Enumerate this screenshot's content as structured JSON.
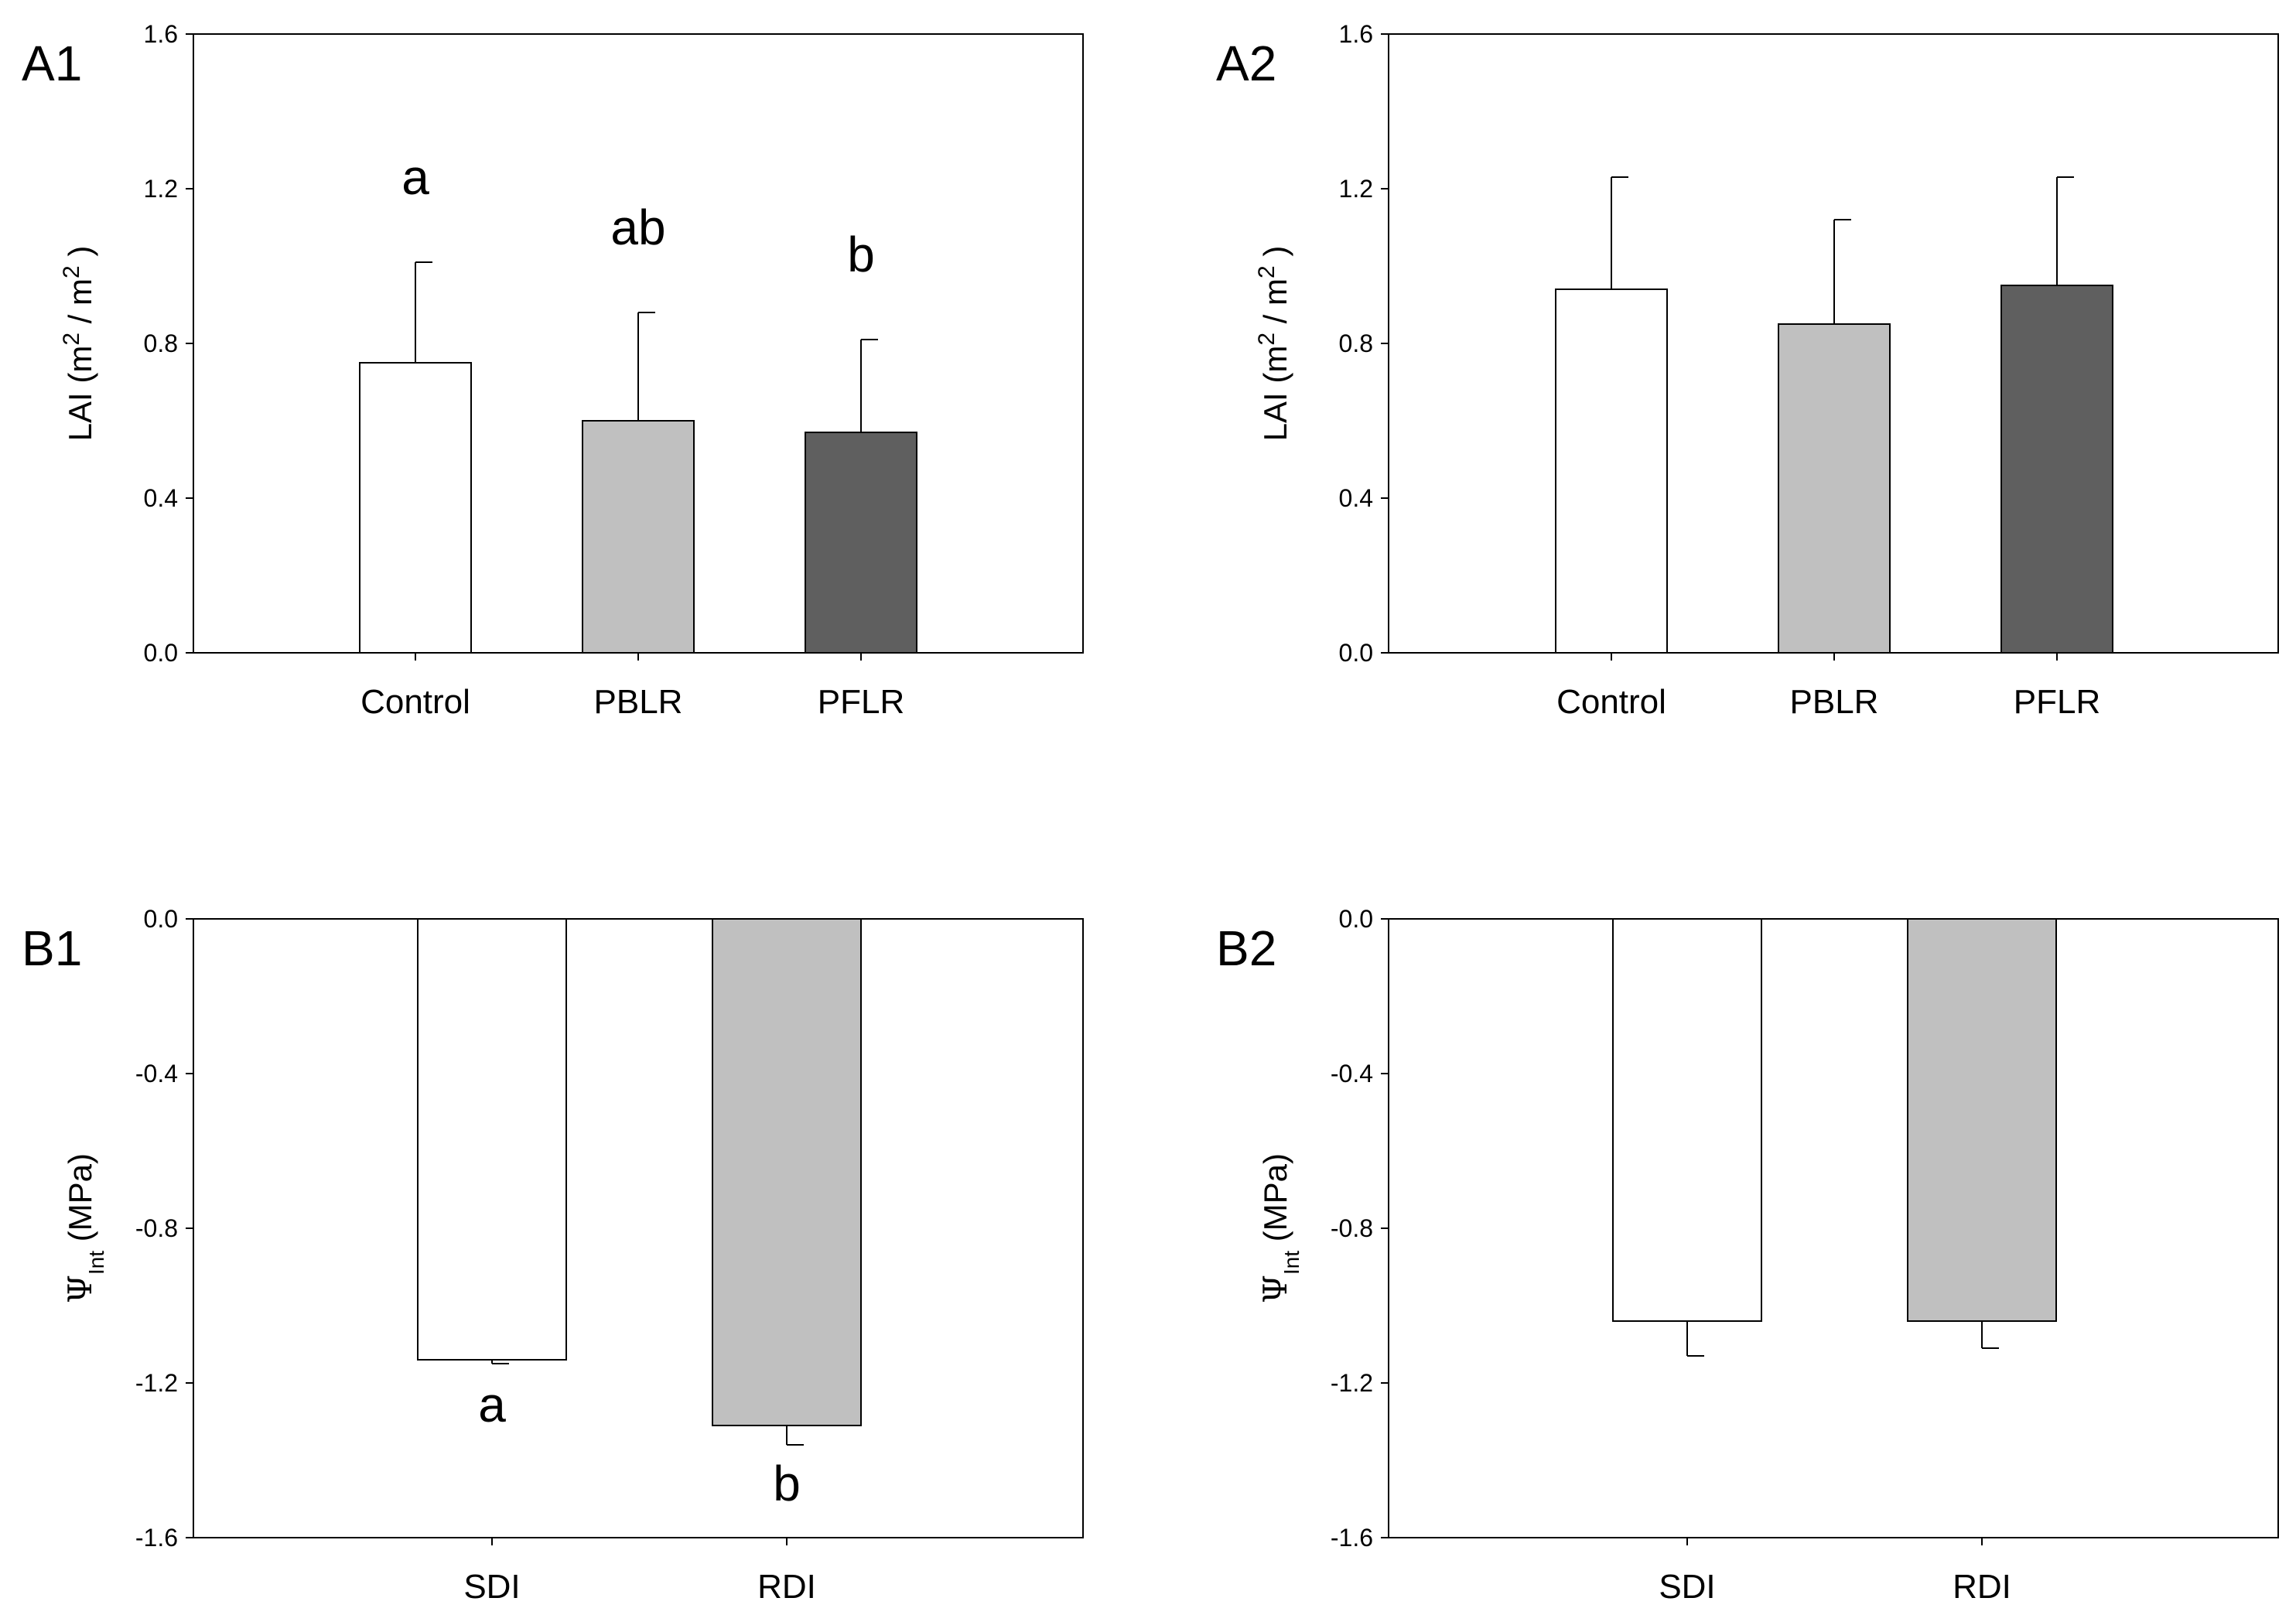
{
  "figure": {
    "colors": {
      "frame": "#000000",
      "bar_outline": "#000000",
      "white_bar": "#ffffff",
      "light_gray_bar": "#c0c0c0",
      "dark_gray_bar": "#5f5f5f"
    }
  },
  "chart_data": [
    {
      "id": "A1",
      "panel_label": "A1",
      "type": "bar",
      "ylabel": "LAI (m2 / m2 )",
      "ylabel_parts": {
        "prefix": "LAI (m",
        "sup1": "2",
        "middle": " / m",
        "sup2": "2",
        "suffix": " )"
      },
      "ylim": [
        0.0,
        1.6
      ],
      "yticks": [
        0.0,
        0.4,
        0.8,
        1.2,
        1.6
      ],
      "ytick_labels": [
        "0.0",
        "0.4",
        "0.8",
        "1.2",
        "1.6"
      ],
      "categories": [
        "Control",
        "PBLR",
        "PFLR"
      ],
      "values": [
        0.75,
        0.6,
        0.57
      ],
      "error_bars": [
        0.26,
        0.28,
        0.24
      ],
      "bar_colors": [
        "#ffffff",
        "#c0c0c0",
        "#5f5f5f"
      ],
      "significance_letters": [
        "a",
        "ab",
        "b"
      ],
      "grid": false,
      "legend": "none"
    },
    {
      "id": "A2",
      "panel_label": "A2",
      "type": "bar",
      "ylabel": "LAI (m2 / m2 )",
      "ylabel_parts": {
        "prefix": "LAI (m",
        "sup1": "2",
        "middle": " / m",
        "sup2": "2",
        "suffix": " )"
      },
      "ylim": [
        0.0,
        1.6
      ],
      "yticks": [
        0.0,
        0.4,
        0.8,
        1.2,
        1.6
      ],
      "ytick_labels": [
        "0.0",
        "0.4",
        "0.8",
        "1.2",
        "1.6"
      ],
      "categories": [
        "Control",
        "PBLR",
        "PFLR"
      ],
      "values": [
        0.94,
        0.85,
        0.95
      ],
      "error_bars": [
        0.29,
        0.27,
        0.28
      ],
      "bar_colors": [
        "#ffffff",
        "#c0c0c0",
        "#5f5f5f"
      ],
      "significance_letters": [],
      "grid": false,
      "legend": "none"
    },
    {
      "id": "B1",
      "panel_label": "B1",
      "type": "bar",
      "ylabel": "ΨInt (MPa)",
      "ylabel_parts": {
        "symbol": "Ψ",
        "subscript": "Int",
        "suffix": " (MPa)"
      },
      "ylim": [
        -1.6,
        0.0
      ],
      "yticks": [
        0.0,
        -0.4,
        -0.8,
        -1.2,
        -1.6
      ],
      "ytick_labels": [
        "0.0",
        "-0.4",
        "-0.8",
        "-1.2",
        "-1.6"
      ],
      "categories": [
        "SDI",
        "RDI"
      ],
      "values": [
        -1.14,
        -1.31
      ],
      "error_bars": [
        0.01,
        0.05
      ],
      "bar_colors": [
        "#ffffff",
        "#c0c0c0"
      ],
      "significance_letters": [
        "a",
        "b"
      ],
      "grid": false,
      "legend": "none"
    },
    {
      "id": "B2",
      "panel_label": "B2",
      "type": "bar",
      "ylabel": "ΨInt (MPa)",
      "ylabel_parts": {
        "symbol": "Ψ",
        "subscript": "Int",
        "suffix": " (MPa)"
      },
      "ylim": [
        -1.6,
        0.0
      ],
      "yticks": [
        0.0,
        -0.4,
        -0.8,
        -1.2,
        -1.6
      ],
      "ytick_labels": [
        "0.0",
        "-0.4",
        "-0.8",
        "-1.2",
        "-1.6"
      ],
      "categories": [
        "SDI",
        "RDI"
      ],
      "values": [
        -1.04,
        -1.04
      ],
      "error_bars": [
        0.09,
        0.07
      ],
      "bar_colors": [
        "#ffffff",
        "#c0c0c0"
      ],
      "significance_letters": [],
      "grid": false,
      "legend": "none"
    }
  ]
}
